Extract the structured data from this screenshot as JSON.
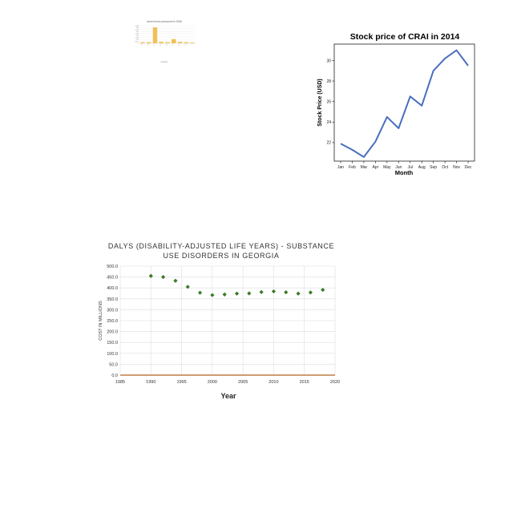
{
  "chart_data": [
    {
      "type": "bar",
      "title": "Armed force personnel in 2008",
      "xlabel": "Country",
      "ylabel": "",
      "categories": [
        "A",
        "B",
        "C",
        "D",
        "E",
        "F",
        "G",
        "H",
        "I"
      ],
      "values": [
        0.3,
        0.3,
        4.5,
        0.4,
        0.3,
        1.2,
        0.4,
        0.3,
        0.2
      ],
      "ylim": [
        0,
        5
      ],
      "yticks": [
        "0",
        "500k",
        "1M",
        "1.5M",
        "2M",
        "2.5M",
        "3M",
        "3.5M",
        "4M",
        "4.5M"
      ],
      "color": "#f2c057",
      "grid": true
    },
    {
      "type": "line",
      "title": "Stock price of CRAI in 2014",
      "xlabel": "Month",
      "ylabel": "Stock Price (USD)",
      "categories": [
        "Jan",
        "Feb",
        "Mar",
        "Apr",
        "May",
        "Jun",
        "Jul",
        "Aug",
        "Sep",
        "Oct",
        "Nov",
        "Dec"
      ],
      "values": [
        21.9,
        21.3,
        20.6,
        22.1,
        24.5,
        23.4,
        26.5,
        25.6,
        29.0,
        30.2,
        31.0,
        29.5
      ],
      "ylim": [
        20.2,
        31.6
      ],
      "yticks": [
        22,
        24,
        26,
        28,
        30
      ],
      "color": "#4a6fbf",
      "grid": false
    },
    {
      "type": "scatter",
      "title": "DALYS (DISABILITY-ADJUSTED LIFE YEARS) - SUBSTANCE USE DISORDERS IN GEORGIA",
      "title_lines": [
        "DALYS (DISABILITY-ADJUSTED LIFE YEARS) - SUBSTANCE",
        "USE DISORDERS IN GEORGIA"
      ],
      "xlabel": "Year",
      "ylabel": "COST IN MILLIONS",
      "x": [
        1990,
        1992,
        1994,
        1996,
        1998,
        2000,
        2002,
        2004,
        2006,
        2008,
        2010,
        2012,
        2014,
        2016,
        2018
      ],
      "y": [
        455,
        450,
        433,
        405,
        378,
        367,
        370,
        374,
        375,
        381,
        384,
        380,
        374,
        379,
        391
      ],
      "xlim": [
        1985,
        2020
      ],
      "ylim": [
        0,
        500
      ],
      "xticks": [
        "1985",
        "1990",
        "1995",
        "2000",
        "2005",
        "2010",
        "2015",
        "2020"
      ],
      "yticks": [
        "0.0",
        "50.0",
        "100.0",
        "150.0",
        "200.0",
        "250.0",
        "300.0",
        "350.0",
        "400.0",
        "450.0",
        "500.0"
      ],
      "color": "#3d7a2a",
      "axis_color": "#b5651d",
      "grid": true
    }
  ]
}
